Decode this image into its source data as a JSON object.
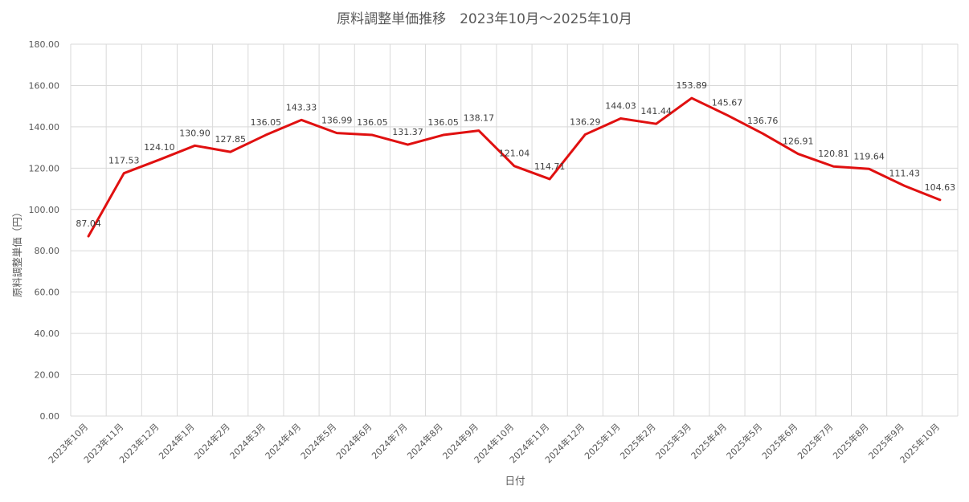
{
  "chart_data": {
    "type": "line",
    "title": "原料調整単価推移　2023年10月～2025年10月",
    "xlabel": "日付",
    "ylabel": "原料調整単価（円）",
    "ylim": [
      0,
      180
    ],
    "yticks": [
      "0.00",
      "20.00",
      "40.00",
      "60.00",
      "80.00",
      "100.00",
      "120.00",
      "140.00",
      "160.00",
      "180.00"
    ],
    "grid": true,
    "legend": "none",
    "categories": [
      "2023年10月",
      "2023年11月",
      "2023年12月",
      "2024年1月",
      "2024年2月",
      "2024年3月",
      "2024年4月",
      "2024年5月",
      "2024年6月",
      "2024年7月",
      "2024年8月",
      "2024年9月",
      "2024年10月",
      "2024年11月",
      "2024年12月",
      "2025年1月",
      "2025年2月",
      "2025年3月",
      "2025年4月",
      "2025年5月",
      "2025年6月",
      "2025年7月",
      "2025年8月",
      "2025年9月",
      "2025年10月"
    ],
    "series": [
      {
        "color": "#e01010",
        "values": [
          87.04,
          117.53,
          124.1,
          130.9,
          127.85,
          136.05,
          143.33,
          136.99,
          136.05,
          131.37,
          136.05,
          138.17,
          121.04,
          114.71,
          136.29,
          144.03,
          141.44,
          153.89,
          145.67,
          136.76,
          126.91,
          120.81,
          119.64,
          111.43,
          104.63
        ],
        "labels": [
          "87.04",
          "117.53",
          "124.10",
          "130.90",
          "127.85",
          "136.05",
          "143.33",
          "136.99",
          "136.05",
          "131.37",
          "136.05",
          "138.17",
          "121.04",
          "114.71",
          "136.29",
          "144.03",
          "141.44",
          "153.89",
          "145.67",
          "136.76",
          "126.91",
          "120.81",
          "119.64",
          "111.43",
          "104.63"
        ]
      }
    ]
  }
}
